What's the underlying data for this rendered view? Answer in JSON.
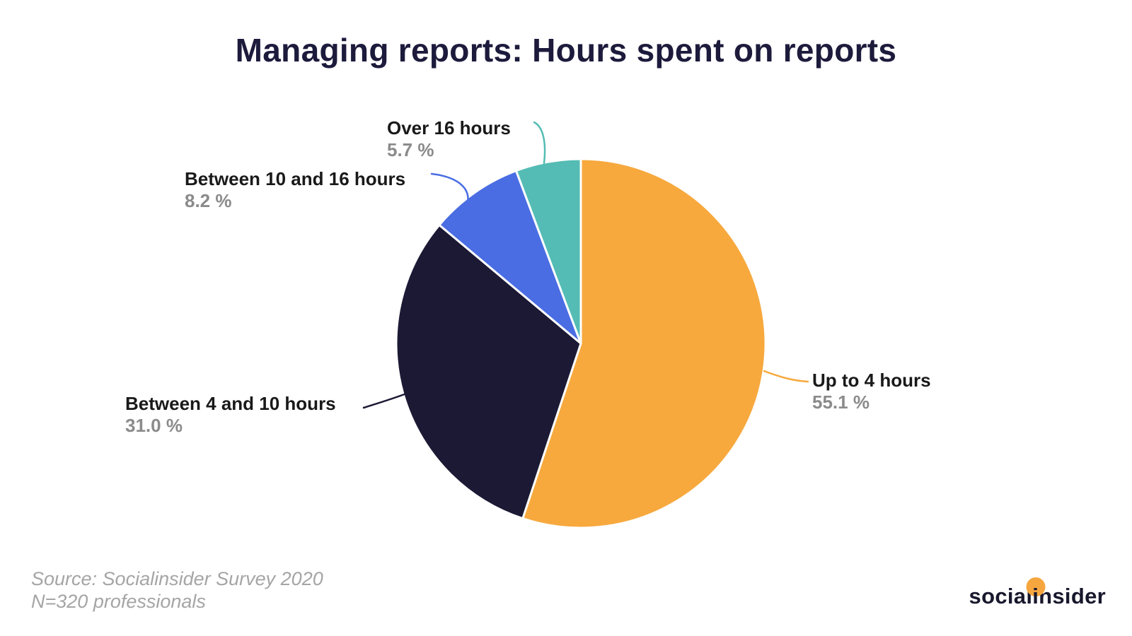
{
  "chart_data": {
    "type": "pie",
    "title": "Managing reports: Hours spent on reports",
    "units": "%",
    "total": 100,
    "start_angle_deg": 0,
    "direction": "clockwise-from-top",
    "legend": "none",
    "labels": "outside-with-leader-lines",
    "title_color": "#1D1B3C",
    "name_color": "#191919",
    "pct_color": "#8B8B8B",
    "slices": [
      {
        "label": "Up to 4 hours",
        "value": 55.1,
        "pct_label": "55.1 %",
        "color": "#F7A93E"
      },
      {
        "label": "Between 4 and 10 hours",
        "value": 31.0,
        "pct_label": "31.0 %",
        "color": "#1B1934"
      },
      {
        "label": "Between 10 and 16 hours",
        "value": 8.2,
        "pct_label": "8.2 %",
        "color": "#4A6DE3"
      },
      {
        "label": "Over 16 hours",
        "value": 5.7,
        "pct_label": "5.7 %",
        "color": "#54BCB4"
      }
    ]
  },
  "source": {
    "line1": "Source: Socialinsider Survey 2020",
    "line2": "N=320 professionals",
    "color": "#A5A5A5"
  },
  "logo": {
    "part1": "social",
    "accent_letter": "i",
    "part2": "nsider",
    "dot_color": "#F5A63F",
    "text_color": "#18182D"
  }
}
